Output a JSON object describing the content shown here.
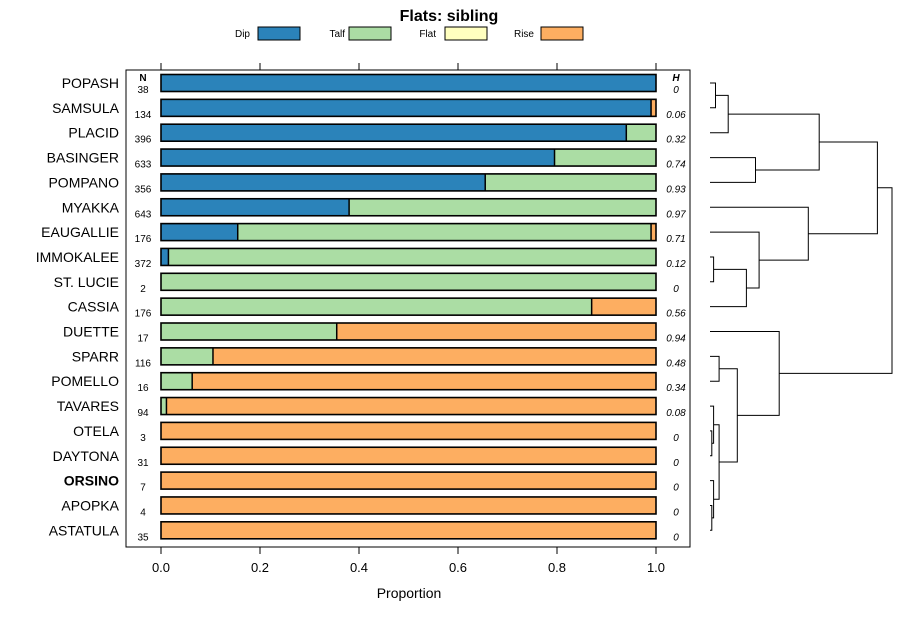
{
  "chart_data": {
    "type": "bar",
    "stacked": true,
    "orientation": "horizontal",
    "title": "Flats: sibling",
    "xlabel": "Proportion",
    "xlim": [
      0,
      1
    ],
    "x_ticks": [
      "0.0",
      "0.2",
      "0.4",
      "0.6",
      "0.8",
      "1.0"
    ],
    "x_tick_values": [
      0,
      0.2,
      0.4,
      0.6,
      0.8,
      1.0
    ],
    "n_header": "N",
    "h_header": "H",
    "legend_position": "top",
    "series": [
      {
        "name": "Dip",
        "color": "#2b83ba"
      },
      {
        "name": "Talf",
        "color": "#abdda4"
      },
      {
        "name": "Flat",
        "color": "#ffffbf"
      },
      {
        "name": "Rise",
        "color": "#fdae61"
      }
    ],
    "rows": [
      {
        "label": "POPASH",
        "n": "38",
        "h": "0",
        "values": [
          1.0,
          0.0,
          0,
          0.0
        ]
      },
      {
        "label": "SAMSULA",
        "n": "134",
        "h": "0.06",
        "values": [
          0.99,
          0.0,
          0,
          0.01
        ]
      },
      {
        "label": "PLACID",
        "n": "396",
        "h": "0.32",
        "values": [
          0.94,
          0.06,
          0,
          0.0
        ]
      },
      {
        "label": "BASINGER",
        "n": "633",
        "h": "0.74",
        "values": [
          0.795,
          0.205,
          0,
          0.0
        ]
      },
      {
        "label": "POMPANO",
        "n": "356",
        "h": "0.93",
        "values": [
          0.655,
          0.345,
          0,
          0.0
        ]
      },
      {
        "label": "MYAKKA",
        "n": "643",
        "h": "0.97",
        "values": [
          0.38,
          0.62,
          0,
          0.0
        ]
      },
      {
        "label": "EAUGALLIE",
        "n": "176",
        "h": "0.71",
        "values": [
          0.155,
          0.835,
          0,
          0.01
        ]
      },
      {
        "label": "IMMOKALEE",
        "n": "372",
        "h": "0.12",
        "values": [
          0.015,
          0.985,
          0,
          0.0
        ]
      },
      {
        "label": "ST. LUCIE",
        "n": "2",
        "h": "0",
        "values": [
          0.0,
          1.0,
          0,
          0.0
        ]
      },
      {
        "label": "CASSIA",
        "n": "176",
        "h": "0.56",
        "values": [
          0.0,
          0.87,
          0,
          0.13
        ]
      },
      {
        "label": "DUETTE",
        "n": "17",
        "h": "0.94",
        "values": [
          0.0,
          0.355,
          0,
          0.645
        ]
      },
      {
        "label": "SPARR",
        "n": "116",
        "h": "0.48",
        "values": [
          0.0,
          0.105,
          0,
          0.895
        ]
      },
      {
        "label": "POMELLO",
        "n": "16",
        "h": "0.34",
        "values": [
          0.0,
          0.063,
          0,
          0.937
        ]
      },
      {
        "label": "TAVARES",
        "n": "94",
        "h": "0.08",
        "values": [
          0.0,
          0.011,
          0,
          0.989
        ]
      },
      {
        "label": "OTELA",
        "n": "3",
        "h": "0",
        "values": [
          0.0,
          0.0,
          0,
          1.0
        ]
      },
      {
        "label": "DAYTONA",
        "n": "31",
        "h": "0",
        "values": [
          0.0,
          0.0,
          0,
          1.0
        ]
      },
      {
        "label": "ORSINO",
        "n": "7",
        "h": "0",
        "values": [
          0.0,
          0.0,
          0,
          1.0
        ],
        "highlight": true
      },
      {
        "label": "APOPKA",
        "n": "4",
        "h": "0",
        "values": [
          0.0,
          0.0,
          0,
          1.0
        ]
      },
      {
        "label": "ASTATULA",
        "n": "35",
        "h": "0",
        "values": [
          0.0,
          0.0,
          0,
          1.0
        ]
      }
    ],
    "dendrogram": {
      "nodes": [
        {
          "id": "n0",
          "a": 0,
          "b": 1,
          "height": 0.03
        },
        {
          "id": "n1",
          "a": "n0",
          "b": 2,
          "height": 0.1
        },
        {
          "id": "n2",
          "a": 3,
          "b": 4,
          "height": 0.25
        },
        {
          "id": "n3",
          "a": "n1",
          "b": "n2",
          "height": 0.6
        },
        {
          "id": "n4",
          "a": 7,
          "b": 8,
          "height": 0.02
        },
        {
          "id": "n5",
          "a": "n4",
          "b": 9,
          "height": 0.2
        },
        {
          "id": "n6",
          "a": 6,
          "b": "n5",
          "height": 0.27
        },
        {
          "id": "n7",
          "a": 5,
          "b": "n6",
          "height": 0.54
        },
        {
          "id": "n8",
          "a": "n3",
          "b": "n7",
          "height": 0.92
        },
        {
          "id": "n9",
          "a": 11,
          "b": 12,
          "height": 0.05
        },
        {
          "id": "n10",
          "a": 14,
          "b": 15,
          "height": 0.01
        },
        {
          "id": "n11",
          "a": 13,
          "b": "n10",
          "height": 0.02
        },
        {
          "id": "n12",
          "a": 17,
          "b": 18,
          "height": 0.01
        },
        {
          "id": "n13",
          "a": 16,
          "b": "n12",
          "height": 0.02
        },
        {
          "id": "n14",
          "a": "n11",
          "b": "n13",
          "height": 0.05
        },
        {
          "id": "n15",
          "a": "n9",
          "b": "n14",
          "height": 0.15
        },
        {
          "id": "n16",
          "a": 10,
          "b": "n15",
          "height": 0.38
        },
        {
          "id": "n17",
          "a": "n8",
          "b": "n16",
          "height": 1.0
        }
      ]
    }
  }
}
